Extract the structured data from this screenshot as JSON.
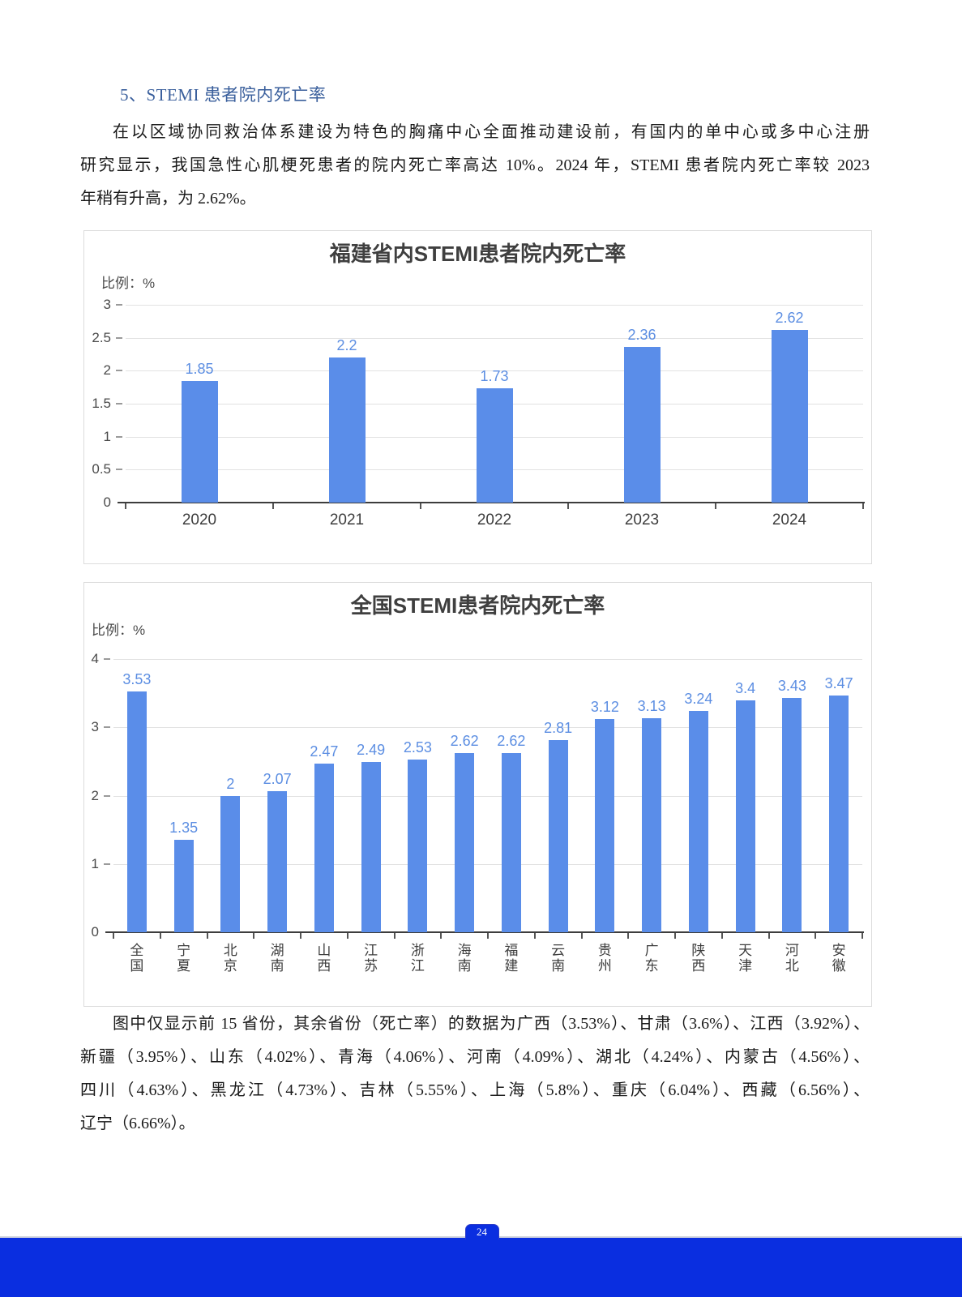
{
  "page": {
    "heading": "5、STEMI 患者院内死亡率",
    "paragraph1_lines": [
      "在以区域协同救治体系建设为特色的胸痛中心全面推动建设前，有国内的单中心或多中心注册",
      "研究显示，我国急性心肌梗死患者的院内死亡率高达 10%。2024 年，STEMI 患者院内死亡率较 2023",
      "年稍有升高，为 2.62%。"
    ],
    "note_lines": [
      "图中仅显示前 15 省份，其余省份（死亡率）的数据为广西（3.53%）、甘肃（3.6%）、江西（3.92%）、",
      "新疆（3.95%）、山东（4.02%）、青海（4.06%）、河南（4.09%）、湖北（4.24%）、内蒙古（4.56%）、",
      "四川（4.63%）、黑龙江（4.73%）、吉林（5.55%）、上海（5.8%）、重庆（6.04%）、西藏（6.56%）、",
      "辽宁（6.66%）。"
    ],
    "footer_page_number": "24"
  },
  "chart_data": [
    {
      "type": "bar",
      "title": "福建省内STEMI患者院内死亡率",
      "ylabel": "比例：%",
      "xlabel": "",
      "categories": [
        "2020",
        "2021",
        "2022",
        "2023",
        "2024"
      ],
      "values": [
        1.85,
        2.2,
        1.73,
        2.36,
        2.62
      ],
      "ylim": [
        0,
        3
      ],
      "ytick_step": 0.5,
      "grid": true,
      "legend": "none",
      "bar_color": "#5a8de9",
      "label_color": "#5c8ee2"
    },
    {
      "type": "bar",
      "title": "全国STEMI患者院内死亡率",
      "ylabel": "比例：%",
      "xlabel": "",
      "categories": [
        "全国",
        "宁夏",
        "北京",
        "湖南",
        "山西",
        "江苏",
        "浙江",
        "海南",
        "福建",
        "云南",
        "贵州",
        "广东",
        "陕西",
        "天津",
        "河北",
        "安徽"
      ],
      "values": [
        3.53,
        1.35,
        2,
        2.07,
        2.47,
        2.49,
        2.53,
        2.62,
        2.62,
        2.81,
        3.12,
        3.13,
        3.24,
        3.4,
        3.43,
        3.47
      ],
      "ylim": [
        0,
        4
      ],
      "ytick_step": 1,
      "grid": true,
      "legend": "none",
      "bar_color": "#5a8de9",
      "label_color": "#5c8ee2"
    }
  ]
}
